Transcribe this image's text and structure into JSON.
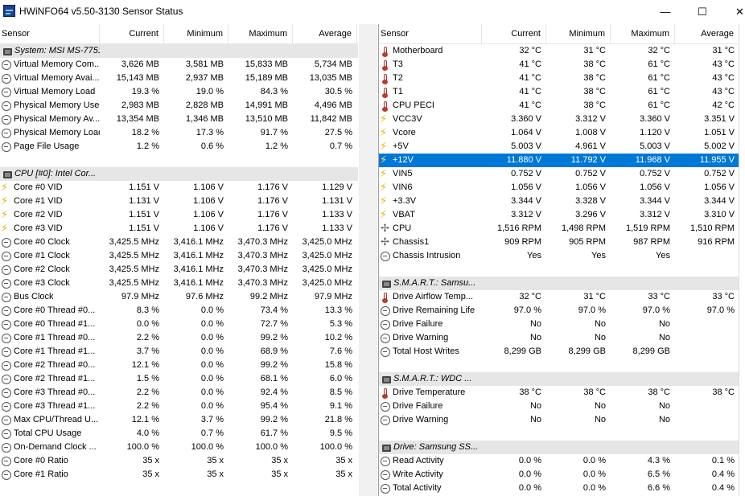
{
  "window": {
    "title": "HWiNFO64 v5.50-3130 Sensor Status",
    "min_label": "—",
    "max_label": "☐",
    "close_label": "✕"
  },
  "columns": {
    "sensor": "Sensor",
    "current": "Current",
    "minimum": "Minimum",
    "maximum": "Maximum",
    "average": "Average"
  },
  "left_rows": [
    {
      "type": "group",
      "icon": "chip-icon",
      "name": "System: MSI MS-7751"
    },
    {
      "type": "row",
      "icon": "clock-icon",
      "name": "Virtual Memory Com...",
      "cur": "3,626 MB",
      "min": "3,581 MB",
      "max": "15,833 MB",
      "avg": "5,734 MB"
    },
    {
      "type": "row",
      "icon": "clock-icon",
      "name": "Virtual Memory Avai...",
      "cur": "15,143 MB",
      "min": "2,937 MB",
      "max": "15,189 MB",
      "avg": "13,035 MB"
    },
    {
      "type": "row",
      "icon": "clock-icon",
      "name": "Virtual Memory Load",
      "cur": "19.3 %",
      "min": "19.0 %",
      "max": "84.3 %",
      "avg": "30.5 %"
    },
    {
      "type": "row",
      "icon": "clock-icon",
      "name": "Physical Memory Used",
      "cur": "2,983 MB",
      "min": "2,828 MB",
      "max": "14,991 MB",
      "avg": "4,496 MB"
    },
    {
      "type": "row",
      "icon": "clock-icon",
      "name": "Physical Memory Av...",
      "cur": "13,354 MB",
      "min": "1,346 MB",
      "max": "13,510 MB",
      "avg": "11,842 MB"
    },
    {
      "type": "row",
      "icon": "clock-icon",
      "name": "Physical Memory Load",
      "cur": "18.2 %",
      "min": "17.3 %",
      "max": "91.7 %",
      "avg": "27.5 %"
    },
    {
      "type": "row",
      "icon": "clock-icon",
      "name": "Page File Usage",
      "cur": "1.2 %",
      "min": "0.6 %",
      "max": "1.2 %",
      "avg": "0.7 %"
    },
    {
      "type": "blank"
    },
    {
      "type": "group",
      "icon": "chip-icon",
      "name": "CPU [#0]: Intel Cor..."
    },
    {
      "type": "row",
      "icon": "bolt-icon",
      "name": "Core #0 VID",
      "cur": "1.151 V",
      "min": "1.106 V",
      "max": "1.176 V",
      "avg": "1.129 V"
    },
    {
      "type": "row",
      "icon": "bolt-icon",
      "name": "Core #1 VID",
      "cur": "1.131 V",
      "min": "1.106 V",
      "max": "1.176 V",
      "avg": "1.131 V"
    },
    {
      "type": "row",
      "icon": "bolt-icon",
      "name": "Core #2 VID",
      "cur": "1.151 V",
      "min": "1.106 V",
      "max": "1.176 V",
      "avg": "1.133 V"
    },
    {
      "type": "row",
      "icon": "bolt-icon",
      "name": "Core #3 VID",
      "cur": "1.151 V",
      "min": "1.106 V",
      "max": "1.176 V",
      "avg": "1.133 V"
    },
    {
      "type": "row",
      "icon": "clock-icon",
      "name": "Core #0 Clock",
      "cur": "3,425.5 MHz",
      "min": "3,416.1 MHz",
      "max": "3,470.3 MHz",
      "avg": "3,425.0 MHz"
    },
    {
      "type": "row",
      "icon": "clock-icon",
      "name": "Core #1 Clock",
      "cur": "3,425.5 MHz",
      "min": "3,416.1 MHz",
      "max": "3,470.3 MHz",
      "avg": "3,425.0 MHz"
    },
    {
      "type": "row",
      "icon": "clock-icon",
      "name": "Core #2 Clock",
      "cur": "3,425.5 MHz",
      "min": "3,416.1 MHz",
      "max": "3,470.3 MHz",
      "avg": "3,425.0 MHz"
    },
    {
      "type": "row",
      "icon": "clock-icon",
      "name": "Core #3 Clock",
      "cur": "3,425.5 MHz",
      "min": "3,416.1 MHz",
      "max": "3,470.3 MHz",
      "avg": "3,425.0 MHz"
    },
    {
      "type": "row",
      "icon": "clock-icon",
      "name": "Bus Clock",
      "cur": "97.9 MHz",
      "min": "97.6 MHz",
      "max": "99.2 MHz",
      "avg": "97.9 MHz"
    },
    {
      "type": "row",
      "icon": "clock-icon",
      "name": "Core #0 Thread #0...",
      "cur": "8.3 %",
      "min": "0.0 %",
      "max": "73.4 %",
      "avg": "13.3 %"
    },
    {
      "type": "row",
      "icon": "clock-icon",
      "name": "Core #0 Thread #1...",
      "cur": "0.0 %",
      "min": "0.0 %",
      "max": "72.7 %",
      "avg": "5.3 %"
    },
    {
      "type": "row",
      "icon": "clock-icon",
      "name": "Core #1 Thread #0...",
      "cur": "2.2 %",
      "min": "0.0 %",
      "max": "99.2 %",
      "avg": "10.2 %"
    },
    {
      "type": "row",
      "icon": "clock-icon",
      "name": "Core #1 Thread #1...",
      "cur": "3.7 %",
      "min": "0.0 %",
      "max": "68.9 %",
      "avg": "7.6 %"
    },
    {
      "type": "row",
      "icon": "clock-icon",
      "name": "Core #2 Thread #0...",
      "cur": "12.1 %",
      "min": "0.0 %",
      "max": "99.2 %",
      "avg": "15.8 %"
    },
    {
      "type": "row",
      "icon": "clock-icon",
      "name": "Core #2 Thread #1...",
      "cur": "1.5 %",
      "min": "0.0 %",
      "max": "68.1 %",
      "avg": "6.0 %"
    },
    {
      "type": "row",
      "icon": "clock-icon",
      "name": "Core #3 Thread #0...",
      "cur": "2.2 %",
      "min": "0.0 %",
      "max": "92.4 %",
      "avg": "8.5 %"
    },
    {
      "type": "row",
      "icon": "clock-icon",
      "name": "Core #3 Thread #1...",
      "cur": "2.2 %",
      "min": "0.0 %",
      "max": "95.4 %",
      "avg": "9.1 %"
    },
    {
      "type": "row",
      "icon": "clock-icon",
      "name": "Max CPU/Thread U...",
      "cur": "12.1 %",
      "min": "3.7 %",
      "max": "99.2 %",
      "avg": "21.8 %"
    },
    {
      "type": "row",
      "icon": "clock-icon",
      "name": "Total CPU Usage",
      "cur": "4.0 %",
      "min": "0.7 %",
      "max": "61.7 %",
      "avg": "9.5 %"
    },
    {
      "type": "row",
      "icon": "clock-icon",
      "name": "On-Demand Clock ...",
      "cur": "100.0 %",
      "min": "100.0 %",
      "max": "100.0 %",
      "avg": "100.0 %"
    },
    {
      "type": "row",
      "icon": "clock-icon",
      "name": "Core #0 Ratio",
      "cur": "35 x",
      "min": "35 x",
      "max": "35 x",
      "avg": "35 x"
    },
    {
      "type": "row",
      "icon": "clock-icon",
      "name": "Core #1 Ratio",
      "cur": "35 x",
      "min": "35 x",
      "max": "35 x",
      "avg": "35 x"
    }
  ],
  "right_rows": [
    {
      "type": "row",
      "icon": "thermometer-icon",
      "name": "Motherboard",
      "cur": "32 °C",
      "min": "31 °C",
      "max": "32 °C",
      "avg": "31 °C"
    },
    {
      "type": "row",
      "icon": "thermometer-icon",
      "name": "T3",
      "cur": "41 °C",
      "min": "38 °C",
      "max": "61 °C",
      "avg": "43 °C"
    },
    {
      "type": "row",
      "icon": "thermometer-icon",
      "name": "T2",
      "cur": "41 °C",
      "min": "38 °C",
      "max": "61 °C",
      "avg": "43 °C"
    },
    {
      "type": "row",
      "icon": "thermometer-icon",
      "name": "T1",
      "cur": "41 °C",
      "min": "38 °C",
      "max": "61 °C",
      "avg": "43 °C"
    },
    {
      "type": "row",
      "icon": "thermometer-icon",
      "name": "CPU PECI",
      "cur": "41 °C",
      "min": "38 °C",
      "max": "61 °C",
      "avg": "42 °C"
    },
    {
      "type": "row",
      "icon": "bolt-icon",
      "name": "VCC3V",
      "cur": "3.360 V",
      "min": "3.312 V",
      "max": "3.360 V",
      "avg": "3.351 V"
    },
    {
      "type": "row",
      "icon": "bolt-icon",
      "name": "Vcore",
      "cur": "1.064 V",
      "min": "1.008 V",
      "max": "1.120 V",
      "avg": "1.051 V"
    },
    {
      "type": "row",
      "icon": "bolt-icon",
      "name": "+5V",
      "cur": "5.003 V",
      "min": "4.961 V",
      "max": "5.003 V",
      "avg": "5.002 V"
    },
    {
      "type": "row",
      "icon": "bolt-icon",
      "name": "+12V",
      "cur": "11.880 V",
      "min": "11.792 V",
      "max": "11.968 V",
      "avg": "11.955 V",
      "selected": true
    },
    {
      "type": "row",
      "icon": "bolt-icon",
      "name": "VIN5",
      "cur": "0.752 V",
      "min": "0.752 V",
      "max": "0.752 V",
      "avg": "0.752 V"
    },
    {
      "type": "row",
      "icon": "bolt-icon",
      "name": "VIN6",
      "cur": "1.056 V",
      "min": "1.056 V",
      "max": "1.056 V",
      "avg": "1.056 V"
    },
    {
      "type": "row",
      "icon": "bolt-icon",
      "name": "+3.3V",
      "cur": "3.344 V",
      "min": "3.328 V",
      "max": "3.344 V",
      "avg": "3.344 V"
    },
    {
      "type": "row",
      "icon": "bolt-icon",
      "name": "VBAT",
      "cur": "3.312 V",
      "min": "3.296 V",
      "max": "3.312 V",
      "avg": "3.310 V"
    },
    {
      "type": "row",
      "icon": "fan-icon",
      "name": "CPU",
      "cur": "1,516 RPM",
      "min": "1,498 RPM",
      "max": "1,519 RPM",
      "avg": "1,510 RPM"
    },
    {
      "type": "row",
      "icon": "fan-icon",
      "name": "Chassis1",
      "cur": "909 RPM",
      "min": "905 RPM",
      "max": "987 RPM",
      "avg": "916 RPM"
    },
    {
      "type": "row",
      "icon": "clock-icon",
      "name": "Chassis Intrusion",
      "cur": "Yes",
      "min": "Yes",
      "max": "Yes",
      "avg": ""
    },
    {
      "type": "blank"
    },
    {
      "type": "group",
      "icon": "chip-icon",
      "name": "S.M.A.R.T.: Samsu..."
    },
    {
      "type": "row",
      "icon": "thermometer-icon",
      "name": "Drive Airflow Temp...",
      "cur": "32 °C",
      "min": "31 °C",
      "max": "33 °C",
      "avg": "33 °C"
    },
    {
      "type": "row",
      "icon": "clock-icon",
      "name": "Drive Remaining Life",
      "cur": "97.0 %",
      "min": "97.0 %",
      "max": "97.0 %",
      "avg": "97.0 %"
    },
    {
      "type": "row",
      "icon": "clock-icon",
      "name": "Drive Failure",
      "cur": "No",
      "min": "No",
      "max": "No",
      "avg": ""
    },
    {
      "type": "row",
      "icon": "clock-icon",
      "name": "Drive Warning",
      "cur": "No",
      "min": "No",
      "max": "No",
      "avg": ""
    },
    {
      "type": "row",
      "icon": "clock-icon",
      "name": "Total Host Writes",
      "cur": "8,299 GB",
      "min": "8,299 GB",
      "max": "8,299 GB",
      "avg": ""
    },
    {
      "type": "blank"
    },
    {
      "type": "group",
      "icon": "chip-icon",
      "name": "S.M.A.R.T.: WDC ..."
    },
    {
      "type": "row",
      "icon": "thermometer-icon",
      "name": "Drive Temperature",
      "cur": "38 °C",
      "min": "38 °C",
      "max": "38 °C",
      "avg": "38 °C"
    },
    {
      "type": "row",
      "icon": "clock-icon",
      "name": "Drive Failure",
      "cur": "No",
      "min": "No",
      "max": "No",
      "avg": ""
    },
    {
      "type": "row",
      "icon": "clock-icon",
      "name": "Drive Warning",
      "cur": "No",
      "min": "No",
      "max": "No",
      "avg": ""
    },
    {
      "type": "blank"
    },
    {
      "type": "group",
      "icon": "chip-icon",
      "name": "Drive: Samsung SS..."
    },
    {
      "type": "row",
      "icon": "clock-icon",
      "name": "Read Activity",
      "cur": "0.0 %",
      "min": "0.0 %",
      "max": "4.3 %",
      "avg": "0.1 %"
    },
    {
      "type": "row",
      "icon": "clock-icon",
      "name": "Write Activity",
      "cur": "0.0 %",
      "min": "0.0 %",
      "max": "6.5 %",
      "avg": "0.4 %"
    },
    {
      "type": "row",
      "icon": "clock-icon",
      "name": "Total Activity",
      "cur": "0.0 %",
      "min": "0.0 %",
      "max": "6.6 %",
      "avg": "0.4 %"
    }
  ]
}
